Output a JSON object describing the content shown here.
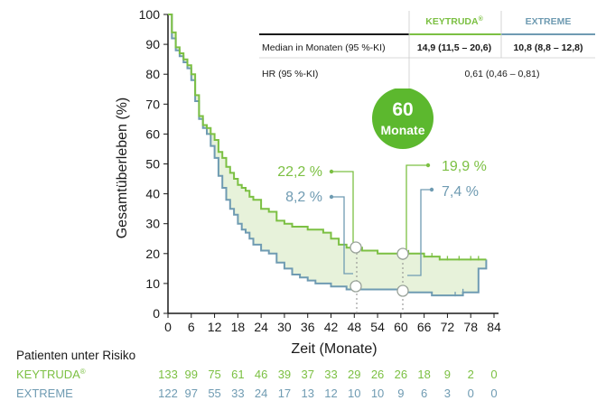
{
  "chart_data": {
    "type": "line",
    "ylabel": "Gesamtüberleben (%)",
    "xlabel": "Zeit (Monate)",
    "xlim": [
      0,
      84
    ],
    "ylim": [
      0,
      100
    ],
    "xticks": [
      "0",
      "6",
      "12",
      "18",
      "24",
      "30",
      "36",
      "42",
      "48",
      "54",
      "60",
      "66",
      "72",
      "78",
      "84"
    ],
    "yticks": [
      "0",
      "10",
      "20",
      "30",
      "40",
      "50",
      "60",
      "70",
      "80",
      "90",
      "100"
    ],
    "colors": {
      "keytruda": "#7cc043",
      "extreme": "#6f9bb2",
      "fill": "#e7f2da",
      "badge": "#5cb82e"
    },
    "series": [
      {
        "name": "KEYTRUDA",
        "x": [
          0,
          1,
          2,
          3,
          4,
          5,
          6,
          7,
          8,
          9,
          10,
          11,
          12,
          13,
          14,
          15,
          16,
          17,
          18,
          19,
          20,
          21,
          22,
          24,
          26,
          28,
          30,
          32,
          34,
          36,
          38,
          40,
          42,
          44,
          46,
          48,
          50,
          52,
          54,
          56,
          58,
          60,
          62,
          64,
          66,
          68,
          70,
          72,
          74,
          76,
          78,
          80,
          82
        ],
        "y": [
          100,
          94,
          89,
          87,
          85,
          83,
          80,
          73,
          66,
          63,
          62,
          60,
          58,
          54,
          52,
          49,
          47,
          45,
          43,
          42,
          41,
          39,
          38,
          35,
          34,
          31,
          30,
          29,
          29,
          28,
          28,
          27,
          25,
          23,
          22,
          22,
          21,
          21,
          20,
          20,
          20,
          20,
          20,
          20,
          19,
          19,
          18,
          18,
          18,
          18,
          18,
          18,
          18
        ],
        "ann": [
          {
            "x": 48,
            "value": "22,2 %"
          },
          {
            "x": 60,
            "value": "19,9 %"
          }
        ]
      },
      {
        "name": "EXTREME",
        "x": [
          0,
          1,
          2,
          3,
          4,
          5,
          6,
          7,
          8,
          9,
          10,
          11,
          12,
          13,
          14,
          15,
          16,
          17,
          18,
          19,
          20,
          21,
          22,
          24,
          26,
          28,
          30,
          32,
          34,
          36,
          38,
          40,
          42,
          44,
          46,
          48,
          50,
          52,
          54,
          56,
          58,
          60,
          62,
          64,
          66,
          68,
          70,
          72,
          74,
          76,
          78,
          80,
          82
        ],
        "y": [
          100,
          92,
          88,
          86,
          84,
          82,
          78,
          71,
          65,
          62,
          60,
          56,
          52,
          46,
          42,
          38,
          35,
          33,
          30,
          28,
          27,
          25,
          23,
          21,
          20,
          17,
          15,
          13,
          12,
          11,
          10,
          10,
          9,
          9,
          8,
          8,
          8,
          8,
          8,
          8,
          8,
          7,
          7,
          7,
          7,
          6,
          6,
          6,
          6,
          7,
          7,
          15,
          18
        ],
        "ann": [
          {
            "x": 48,
            "value": "8,2 %"
          },
          {
            "x": 60,
            "value": "7,4 %"
          }
        ]
      }
    ],
    "badge": {
      "number": "60",
      "label": "Monate"
    },
    "table": {
      "col_keytruda": "KEYTRUDA",
      "col_keytruda_reg": "®",
      "col_extreme": "EXTREME",
      "row1_label": "Median in Monaten (95 %-KI)",
      "row1_keytruda": "14,9 (11,5 – 20,6)",
      "row1_extreme": "10,8 (8,8 – 12,8)",
      "row2_label": "HR (95 %-KI)",
      "row2_value": "0,61 (0,46 – 0,81)"
    },
    "risk": {
      "title": "Patienten unter Risiko",
      "keytruda_label": "KEYTRUDA",
      "keytruda_reg": "®",
      "extreme_label": "EXTREME",
      "keytruda_values": [
        "133",
        "99",
        "75",
        "61",
        "46",
        "39",
        "37",
        "33",
        "29",
        "26",
        "26",
        "18",
        "9",
        "2",
        "0"
      ],
      "extreme_values": [
        "122",
        "97",
        "55",
        "33",
        "24",
        "17",
        "13",
        "12",
        "10",
        "10",
        "9",
        "6",
        "3",
        "0",
        "0"
      ]
    }
  }
}
